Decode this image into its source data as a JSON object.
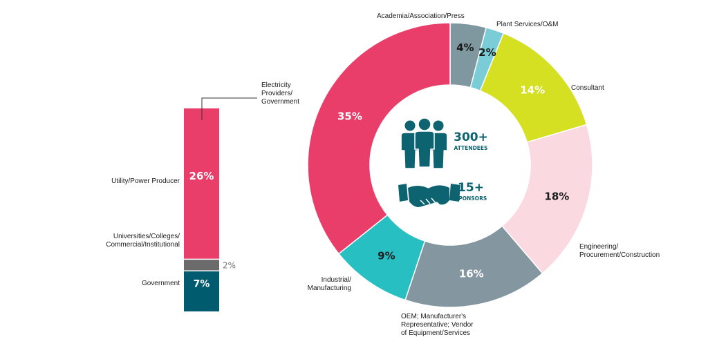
{
  "chart_data": [
    {
      "type": "bar",
      "orientation": "vertical-stacked",
      "series": [
        {
          "name": "Government",
          "value": 7,
          "label": "7%",
          "color": "#005b6f",
          "category_lines": [
            "Government"
          ]
        },
        {
          "name": "Universities/Colleges/Commercial/Institutional",
          "value": 2,
          "label": "2%",
          "color": "#6b6b6b",
          "category_lines": [
            "Universities/Colleges/",
            "Commercial/Institutional"
          ]
        },
        {
          "name": "Utility/Power Producer",
          "value": 26,
          "label": "26%",
          "color": "#e93e6a",
          "category_lines": [
            "Utility/Power Producer"
          ]
        }
      ],
      "callout_lines": [
        "Electricity",
        "Providers/",
        "Government"
      ]
    },
    {
      "type": "pie",
      "donut": true,
      "slices": [
        {
          "name": "Academia/Association/Press",
          "value": 4,
          "label": "4%",
          "color": "#7f979e",
          "name_lines": [
            "Academia/Association/Press"
          ]
        },
        {
          "name": "Plant Services/O&M",
          "value": 2,
          "label": "2%",
          "color": "#7acdd6",
          "name_lines": [
            "Plant Services/O&M"
          ]
        },
        {
          "name": "Consultant",
          "value": 14,
          "label": "14%",
          "color": "#d4e021",
          "name_lines": [
            "Consultant"
          ]
        },
        {
          "name": "Engineering/Procurement/Construction",
          "value": 18,
          "label": "18%",
          "color": "#fad9e1",
          "name_lines": [
            "Engineering/",
            "Procurement/Construction"
          ]
        },
        {
          "name": "OEM; Manufacturer's Representative; Vendor of Equipment/Services",
          "value": 16,
          "label": "16%",
          "color": "#8497a0",
          "name_lines": [
            "OEM; Manufacturer's",
            "Representative; Vendor",
            "of Equipment/Services"
          ]
        },
        {
          "name": "Industrial/Manufacturing",
          "value": 9,
          "label": "9%",
          "color": "#28bfc3",
          "name_lines": [
            "Industrial/",
            "Manufacturing"
          ]
        },
        {
          "name": "Utility/Power Producer",
          "value": 35,
          "label": "35%",
          "color": "#e93e6a",
          "name_lines": []
        }
      ],
      "center": {
        "attendees_value": "300+",
        "attendees_label": "ATTENDEES",
        "sponsors_value": "15+",
        "sponsors_label": "SPONSORS",
        "accent_color": "#0d6370",
        "people_icon": "people-icon",
        "handshake_icon": "handshake-icon"
      }
    }
  ]
}
